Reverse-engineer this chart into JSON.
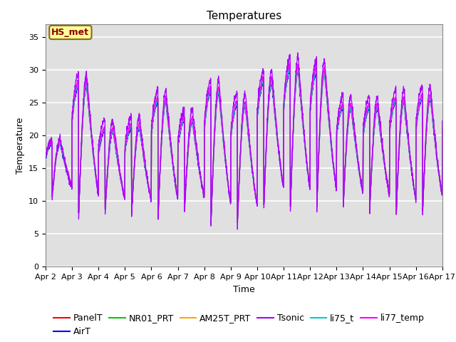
{
  "title": "Temperatures",
  "xlabel": "Time",
  "ylabel": "Temperature",
  "annotation_text": "HS_met",
  "annotation_color": "#8B0000",
  "annotation_bg": "#FFFF99",
  "annotation_border": "#8B6914",
  "ylim": [
    0,
    37
  ],
  "yticks": [
    0,
    5,
    10,
    15,
    20,
    25,
    30,
    35
  ],
  "xtick_labels": [
    "Apr 2",
    "Apr 3",
    "Apr 4",
    "Apr 5",
    "Apr 6",
    "Apr 7",
    "Apr 8",
    "Apr 9",
    "Apr 10",
    "Apr 11",
    "Apr 12",
    "Apr 13",
    "Apr 14",
    "Apr 15",
    "Apr 16",
    "Apr 17"
  ],
  "series_colors": {
    "PanelT": "#FF0000",
    "AirT": "#0000FF",
    "NR01_PRT": "#00CC00",
    "AM25T_PRT": "#FFAA00",
    "Tsonic": "#AA00FF",
    "li75_t": "#00CCCC",
    "li77_temp": "#FF00FF"
  },
  "bg_color": "#E0E0E0",
  "grid_color": "#FFFFFF",
  "title_fontsize": 11,
  "label_fontsize": 9,
  "tick_fontsize": 8,
  "day_peaks": [
    19.0,
    28.0,
    21.0,
    21.5,
    25.5,
    22.5,
    27.0,
    25.0,
    28.5,
    30.5,
    30.0,
    24.5,
    24.5,
    25.5,
    26.0
  ],
  "day_mins": [
    11.0,
    8.0,
    8.5,
    8.0,
    7.5,
    8.5,
    6.5,
    6.5,
    9.0,
    8.5,
    8.5,
    9.0,
    8.5,
    7.5,
    8.0
  ]
}
